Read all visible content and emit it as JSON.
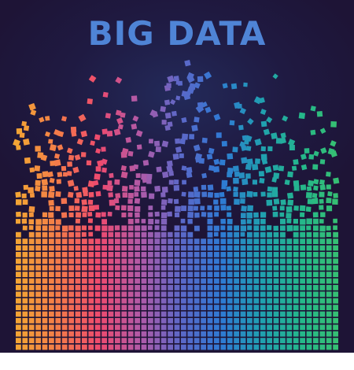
{
  "headline": "BIG DATA",
  "colors": {
    "background": "#1e1436",
    "headline": "#4f84d6",
    "palette": [
      "#f3a435",
      "#f47a4a",
      "#ee4a6f",
      "#b15aa8",
      "#5c68c8",
      "#2f7ad4",
      "#20a0b0",
      "#25b88a",
      "#38c070"
    ]
  },
  "graphic": "pixel-mosaic-bars"
}
